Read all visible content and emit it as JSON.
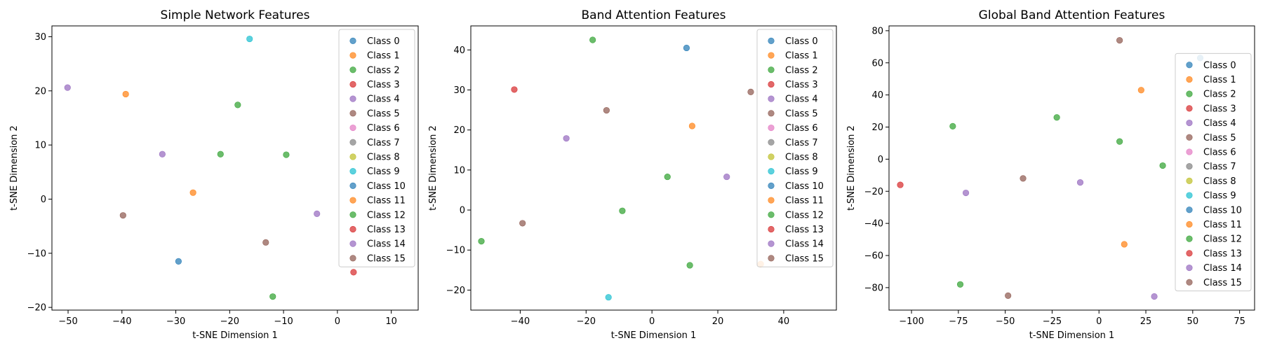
{
  "chart_data": [
    {
      "type": "scatter",
      "title": "Simple Network Features",
      "xlabel": "t-SNE Dimension 1",
      "ylabel": "t-SNE Dimension 2",
      "xlim": [
        -53,
        15
      ],
      "ylim": [
        -20.5,
        32
      ],
      "xticks": [
        -50,
        -40,
        -30,
        -20,
        -10,
        0,
        10
      ],
      "yticks": [
        -20,
        -10,
        0,
        10,
        20,
        30
      ],
      "legend_position": "top-right",
      "points": [
        {
          "x": -29.5,
          "y": -11.5,
          "cls": 0
        },
        {
          "x": -39.3,
          "y": 19.4,
          "cls": 1
        },
        {
          "x": -26.8,
          "y": 1.2,
          "cls": 1
        },
        {
          "x": -18.5,
          "y": 17.4,
          "cls": 2
        },
        {
          "x": -21.7,
          "y": 8.3,
          "cls": 2
        },
        {
          "x": -9.5,
          "y": 8.2,
          "cls": 2
        },
        {
          "x": -12.0,
          "y": -18.0,
          "cls": 2
        },
        {
          "x": 3.0,
          "y": -13.5,
          "cls": 3
        },
        {
          "x": -50.1,
          "y": 20.6,
          "cls": 4
        },
        {
          "x": -32.5,
          "y": 8.3,
          "cls": 4
        },
        {
          "x": -3.8,
          "y": -2.7,
          "cls": 4
        },
        {
          "x": -39.8,
          "y": -3.0,
          "cls": 5
        },
        {
          "x": -13.3,
          "y": -8.0,
          "cls": 5
        },
        {
          "x": -16.3,
          "y": 29.6,
          "cls": 9
        }
      ]
    },
    {
      "type": "scatter",
      "title": "Band Attention Features",
      "xlabel": "t-SNE Dimension 1",
      "ylabel": "t-SNE Dimension 2",
      "xlim": [
        -55,
        56
      ],
      "ylim": [
        -25,
        46
      ],
      "xticks": [
        -40,
        -20,
        0,
        20,
        40
      ],
      "yticks": [
        -20,
        -10,
        0,
        10,
        20,
        30,
        40
      ],
      "legend_position": "top-right",
      "points": [
        {
          "x": 10.5,
          "y": 40.5,
          "cls": 0
        },
        {
          "x": 12.2,
          "y": 21.0,
          "cls": 1
        },
        {
          "x": 33.0,
          "y": -13.5,
          "cls": 1
        },
        {
          "x": -18.0,
          "y": 42.5,
          "cls": 2
        },
        {
          "x": 4.7,
          "y": 8.3,
          "cls": 2
        },
        {
          "x": -9.0,
          "y": -0.2,
          "cls": 2
        },
        {
          "x": -51.8,
          "y": -7.8,
          "cls": 2
        },
        {
          "x": 11.5,
          "y": -13.8,
          "cls": 2
        },
        {
          "x": -41.8,
          "y": 30.1,
          "cls": 3
        },
        {
          "x": -26.0,
          "y": 17.9,
          "cls": 4
        },
        {
          "x": 22.7,
          "y": 8.3,
          "cls": 4
        },
        {
          "x": -13.8,
          "y": 24.9,
          "cls": 5
        },
        {
          "x": -39.3,
          "y": -3.3,
          "cls": 5
        },
        {
          "x": 30.0,
          "y": 29.5,
          "cls": 5
        },
        {
          "x": -13.2,
          "y": -21.8,
          "cls": 9
        }
      ]
    },
    {
      "type": "scatter",
      "title": "Global Band Attention Features",
      "xlabel": "t-SNE Dimension 1",
      "ylabel": "t-SNE Dimension 2",
      "xlim": [
        -112,
        83
      ],
      "ylim": [
        -94,
        83
      ],
      "xticks": [
        -100,
        -75,
        -50,
        -25,
        0,
        25,
        50,
        75
      ],
      "yticks": [
        -80,
        -60,
        -40,
        -20,
        0,
        20,
        40,
        60,
        80
      ],
      "legend_position": "center-right",
      "points": [
        {
          "x": 54.0,
          "y": 63.0,
          "cls": 0
        },
        {
          "x": 22.5,
          "y": 43.0,
          "cls": 1
        },
        {
          "x": 13.5,
          "y": -53.0,
          "cls": 1
        },
        {
          "x": -78.0,
          "y": 20.5,
          "cls": 2
        },
        {
          "x": -22.5,
          "y": 26.0,
          "cls": 2
        },
        {
          "x": 11.0,
          "y": 11.0,
          "cls": 2
        },
        {
          "x": 34.0,
          "y": -4.0,
          "cls": 2
        },
        {
          "x": -74.0,
          "y": -78.0,
          "cls": 2
        },
        {
          "x": -106.0,
          "y": -16.0,
          "cls": 3
        },
        {
          "x": -71.0,
          "y": -21.0,
          "cls": 4
        },
        {
          "x": -10.0,
          "y": -14.5,
          "cls": 4
        },
        {
          "x": 29.5,
          "y": -85.5,
          "cls": 4
        },
        {
          "x": 11.0,
          "y": 74.0,
          "cls": 5
        },
        {
          "x": -40.5,
          "y": -12.0,
          "cls": 5
        },
        {
          "x": -48.5,
          "y": -85.0,
          "cls": 5
        }
      ]
    }
  ],
  "legend_labels": [
    "Class 0",
    "Class 1",
    "Class 2",
    "Class 3",
    "Class 4",
    "Class 5",
    "Class 6",
    "Class 7",
    "Class 8",
    "Class 9",
    "Class 10",
    "Class 11",
    "Class 12",
    "Class 13",
    "Class 14",
    "Class 15"
  ],
  "colors": [
    "#1f77b4",
    "#ff7f0e",
    "#2ca02c",
    "#d62728",
    "#9467bd",
    "#8c564b",
    "#e377c2",
    "#7f7f7f",
    "#bcbd22",
    "#17becf",
    "#1f77b4",
    "#ff7f0e",
    "#2ca02c",
    "#d62728",
    "#9467bd",
    "#8c564b"
  ]
}
